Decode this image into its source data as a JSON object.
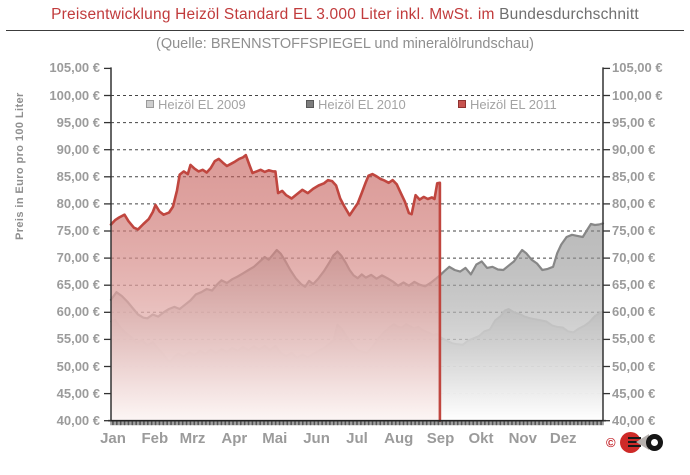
{
  "page": {
    "title_red": "Preisentwicklung Heizöl Standard EL 3.000 Liter inkl. MwSt. im",
    "title_gray": "Bundesdurchschnitt",
    "subtitle": "(Quelle: BRENNSTOFFSPIEGEL  und mineralölrundschau)"
  },
  "legend": {
    "items": [
      {
        "label": "Heizöl EL 2009",
        "fill": "#cecece",
        "border": "#9a9a9a"
      },
      {
        "label": "Heizöl EL 2010",
        "fill": "#7d7d7d",
        "border": "#585858"
      },
      {
        "label": "Heizöl EL 2011",
        "fill": "#c8534f",
        "border": "#8f3230"
      }
    ]
  },
  "y_axis": {
    "title": "Preis in Euro pro 100 Liter",
    "tick_labels": [
      "105,00 €",
      "100,00 €",
      "95,00 €",
      "90,00 €",
      "85,00 €",
      "80,00 €",
      "75,00 €",
      "70,00 €",
      "65,00 €",
      "60,00 €",
      "55,00 €",
      "50,00 €",
      "45,00 €",
      "40,00 €"
    ],
    "min": 40,
    "max": 105,
    "step": 5
  },
  "x_axis": {
    "labels": [
      "Jan",
      "Feb",
      "Mrz",
      "Apr",
      "Mai",
      "Jun",
      "Jul",
      "Aug",
      "Sep",
      "Okt",
      "Nov",
      "Dez"
    ],
    "month_start_days": [
      0,
      31,
      59,
      90,
      120,
      151,
      181,
      212,
      243,
      273,
      304,
      334
    ]
  },
  "logo": {
    "copyright": "©"
  },
  "chart_data": {
    "type": "area",
    "title": "Preisentwicklung Heizöl Standard EL 3.000 Liter inkl. MwSt. im Bundesdurchschnitt",
    "ylabel": "Preis in Euro pro 100 Liter",
    "ylim": [
      40,
      105
    ],
    "x_unit": "day_of_year",
    "grid": true,
    "legend_position": "top",
    "series": [
      {
        "name": "Heizöl EL 2009",
        "line_color": "#c7c7c7",
        "fill_top_color": "rgba(178,178,178,0.55)",
        "fill_bottom_color": "rgba(255,255,255,0.94)",
        "line_width": 2,
        "points": [
          [
            0,
            58.3
          ],
          [
            3,
            58.6
          ],
          [
            7,
            57.2
          ],
          [
            11,
            56.2
          ],
          [
            15,
            55.4
          ],
          [
            19,
            54.4
          ],
          [
            23,
            54.9
          ],
          [
            27,
            53.9
          ],
          [
            31,
            54.5
          ],
          [
            35,
            53.3
          ],
          [
            39,
            52.2
          ],
          [
            42,
            51.2
          ],
          [
            44,
            50.9
          ],
          [
            47,
            51.8
          ],
          [
            50,
            52.4
          ],
          [
            54,
            51.8
          ],
          [
            58,
            52.6
          ],
          [
            62,
            52.1
          ],
          [
            66,
            52.9
          ],
          [
            70,
            52.3
          ],
          [
            74,
            53.1
          ],
          [
            78,
            52.5
          ],
          [
            82,
            53.2
          ],
          [
            86,
            52.7
          ],
          [
            90,
            53.4
          ],
          [
            94,
            52.9
          ],
          [
            98,
            53.6
          ],
          [
            102,
            53.0
          ],
          [
            106,
            53.7
          ],
          [
            110,
            53.1
          ],
          [
            114,
            53.8
          ],
          [
            118,
            53.0
          ],
          [
            122,
            53.8
          ],
          [
            126,
            52.5
          ],
          [
            130,
            51.9
          ],
          [
            134,
            52.5
          ],
          [
            138,
            51.6
          ],
          [
            142,
            52.2
          ],
          [
            146,
            51.7
          ],
          [
            150,
            52.3
          ],
          [
            154,
            52.9
          ],
          [
            158,
            53.4
          ],
          [
            162,
            54.2
          ],
          [
            165,
            54.8
          ],
          [
            168,
            57.7
          ],
          [
            171,
            57.0
          ],
          [
            175,
            55.5
          ],
          [
            179,
            54.0
          ],
          [
            183,
            53.0
          ],
          [
            187,
            52.7
          ],
          [
            190,
            52.5
          ],
          [
            194,
            53.6
          ],
          [
            198,
            55.0
          ],
          [
            202,
            56.2
          ],
          [
            206,
            57.1
          ],
          [
            210,
            57.8
          ],
          [
            213,
            57.3
          ],
          [
            216,
            57.2
          ],
          [
            219,
            57.8
          ],
          [
            222,
            57.4
          ],
          [
            225,
            57.0
          ],
          [
            228,
            57.3
          ],
          [
            232,
            56.6
          ],
          [
            236,
            56.2
          ],
          [
            239,
            55.8
          ],
          [
            242,
            56.0
          ],
          [
            245,
            55.3
          ],
          [
            249,
            54.8
          ],
          [
            253,
            54.3
          ],
          [
            257,
            54.1
          ],
          [
            261,
            54.0
          ],
          [
            265,
            54.8
          ],
          [
            269,
            55.2
          ],
          [
            273,
            55.6
          ],
          [
            277,
            56.5
          ],
          [
            281,
            56.8
          ],
          [
            285,
            58.5
          ],
          [
            289,
            59.3
          ],
          [
            292,
            60.3
          ],
          [
            295,
            60.6
          ],
          [
            299,
            60.0
          ],
          [
            303,
            59.7
          ],
          [
            307,
            59.2
          ],
          [
            311,
            58.9
          ],
          [
            315,
            58.7
          ],
          [
            319,
            58.5
          ],
          [
            323,
            58.3
          ],
          [
            327,
            57.6
          ],
          [
            331,
            57.3
          ],
          [
            335,
            57.2
          ],
          [
            339,
            56.5
          ],
          [
            343,
            56.3
          ],
          [
            347,
            57.0
          ],
          [
            351,
            57.5
          ],
          [
            355,
            58.2
          ],
          [
            359,
            59.3
          ],
          [
            362,
            59.8
          ],
          [
            365,
            60.2
          ]
        ]
      },
      {
        "name": "Heizöl EL 2010",
        "line_color": "#878787",
        "fill_top_color": "rgba(125,125,125,0.52)",
        "fill_bottom_color": "rgba(255,255,255,0.94)",
        "line_width": 2.2,
        "points": [
          [
            0,
            62.3
          ],
          [
            4,
            63.7
          ],
          [
            8,
            63.0
          ],
          [
            12,
            62.0
          ],
          [
            16,
            60.8
          ],
          [
            20,
            59.6
          ],
          [
            24,
            59.0
          ],
          [
            27,
            58.9
          ],
          [
            31,
            59.6
          ],
          [
            35,
            59.2
          ],
          [
            39,
            60.0
          ],
          [
            43,
            60.6
          ],
          [
            47,
            61.0
          ],
          [
            51,
            60.6
          ],
          [
            55,
            61.4
          ],
          [
            59,
            62.2
          ],
          [
            63,
            63.3
          ],
          [
            67,
            63.7
          ],
          [
            71,
            64.3
          ],
          [
            75,
            64.0
          ],
          [
            79,
            65.2
          ],
          [
            82,
            65.9
          ],
          [
            86,
            65.4
          ],
          [
            90,
            66.1
          ],
          [
            94,
            66.6
          ],
          [
            98,
            67.2
          ],
          [
            102,
            67.8
          ],
          [
            106,
            68.4
          ],
          [
            110,
            69.3
          ],
          [
            114,
            70.2
          ],
          [
            117,
            69.7
          ],
          [
            120,
            70.6
          ],
          [
            123,
            71.5
          ],
          [
            126,
            70.8
          ],
          [
            129,
            69.6
          ],
          [
            133,
            67.8
          ],
          [
            137,
            66.3
          ],
          [
            141,
            65.2
          ],
          [
            144,
            64.7
          ],
          [
            147,
            65.8
          ],
          [
            150,
            65.2
          ],
          [
            154,
            66.3
          ],
          [
            158,
            67.6
          ],
          [
            162,
            69.2
          ],
          [
            165,
            70.5
          ],
          [
            168,
            71.2
          ],
          [
            171,
            70.4
          ],
          [
            174,
            69.2
          ],
          [
            177,
            67.8
          ],
          [
            180,
            66.8
          ],
          [
            183,
            66.3
          ],
          [
            186,
            67.0
          ],
          [
            189,
            66.4
          ],
          [
            193,
            66.9
          ],
          [
            197,
            66.2
          ],
          [
            201,
            66.8
          ],
          [
            205,
            66.3
          ],
          [
            209,
            65.7
          ],
          [
            213,
            64.9
          ],
          [
            217,
            65.5
          ],
          [
            221,
            64.9
          ],
          [
            225,
            65.6
          ],
          [
            229,
            65.1
          ],
          [
            233,
            64.8
          ],
          [
            237,
            65.4
          ],
          [
            241,
            66.2
          ],
          [
            244,
            66.8
          ],
          [
            247,
            67.5
          ],
          [
            251,
            68.4
          ],
          [
            255,
            67.8
          ],
          [
            259,
            67.5
          ],
          [
            263,
            68.2
          ],
          [
            267,
            67.0
          ],
          [
            271,
            68.8
          ],
          [
            275,
            69.4
          ],
          [
            279,
            68.2
          ],
          [
            283,
            68.4
          ],
          [
            287,
            67.9
          ],
          [
            291,
            67.8
          ],
          [
            295,
            68.6
          ],
          [
            299,
            69.4
          ],
          [
            303,
            70.8
          ],
          [
            305,
            71.5
          ],
          [
            308,
            70.9
          ],
          [
            312,
            69.7
          ],
          [
            316,
            69.0
          ],
          [
            320,
            67.8
          ],
          [
            324,
            68.0
          ],
          [
            328,
            68.4
          ],
          [
            331,
            70.9
          ],
          [
            334,
            72.5
          ],
          [
            338,
            73.9
          ],
          [
            342,
            74.3
          ],
          [
            346,
            74.1
          ],
          [
            350,
            73.9
          ],
          [
            353,
            75.1
          ],
          [
            356,
            76.3
          ],
          [
            359,
            76.1
          ],
          [
            362,
            76.2
          ],
          [
            365,
            76.4
          ]
        ]
      },
      {
        "name": "Heizöl EL 2011",
        "line_color": "#c0463f",
        "fill_top_color": "rgba(190,73,68,0.55)",
        "fill_bottom_color": "rgba(252,245,244,0.93)",
        "line_width": 2.6,
        "ends_with_vertical_drop": true,
        "points": [
          [
            0,
            76.2
          ],
          [
            3,
            77.0
          ],
          [
            6,
            77.5
          ],
          [
            10,
            78.0
          ],
          [
            13,
            76.8
          ],
          [
            17,
            75.6
          ],
          [
            20,
            75.3
          ],
          [
            24,
            76.3
          ],
          [
            28,
            77.2
          ],
          [
            31,
            78.5
          ],
          [
            33,
            79.8
          ],
          [
            36,
            78.6
          ],
          [
            39,
            78.0
          ],
          [
            43,
            78.4
          ],
          [
            46,
            79.5
          ],
          [
            49,
            82.5
          ],
          [
            51,
            85.4
          ],
          [
            54,
            86.0
          ],
          [
            57,
            85.5
          ],
          [
            59,
            87.2
          ],
          [
            62,
            86.5
          ],
          [
            65,
            86.0
          ],
          [
            68,
            86.3
          ],
          [
            71,
            85.8
          ],
          [
            74,
            86.6
          ],
          [
            77,
            87.9
          ],
          [
            80,
            88.3
          ],
          [
            83,
            87.6
          ],
          [
            86,
            87.0
          ],
          [
            89,
            87.4
          ],
          [
            92,
            87.8
          ],
          [
            95,
            88.3
          ],
          [
            98,
            88.6
          ],
          [
            100,
            89.0
          ],
          [
            103,
            87.0
          ],
          [
            105,
            85.7
          ],
          [
            108,
            86.0
          ],
          [
            111,
            86.3
          ],
          [
            114,
            85.9
          ],
          [
            117,
            86.2
          ],
          [
            120,
            86.0
          ],
          [
            122,
            86.0
          ],
          [
            124,
            82.0
          ],
          [
            127,
            82.4
          ],
          [
            130,
            81.6
          ],
          [
            134,
            81.0
          ],
          [
            138,
            81.8
          ],
          [
            142,
            82.6
          ],
          [
            146,
            82.0
          ],
          [
            150,
            82.8
          ],
          [
            154,
            83.4
          ],
          [
            158,
            83.8
          ],
          [
            161,
            84.4
          ],
          [
            164,
            84.2
          ],
          [
            167,
            83.4
          ],
          [
            170,
            81.0
          ],
          [
            173,
            79.6
          ],
          [
            177,
            77.9
          ],
          [
            180,
            79.0
          ],
          [
            183,
            80.1
          ],
          [
            186,
            82.0
          ],
          [
            189,
            84.0
          ],
          [
            191,
            85.2
          ],
          [
            194,
            85.5
          ],
          [
            197,
            85.1
          ],
          [
            200,
            84.6
          ],
          [
            203,
            84.3
          ],
          [
            206,
            83.9
          ],
          [
            209,
            84.4
          ],
          [
            212,
            83.6
          ],
          [
            215,
            82.0
          ],
          [
            218,
            80.4
          ],
          [
            221,
            78.3
          ],
          [
            223,
            78.1
          ],
          [
            226,
            81.6
          ],
          [
            229,
            80.8
          ],
          [
            232,
            81.3
          ],
          [
            235,
            80.9
          ],
          [
            238,
            81.2
          ],
          [
            240,
            80.9
          ],
          [
            242,
            83.8
          ],
          [
            244,
            83.9
          ]
        ]
      }
    ]
  }
}
